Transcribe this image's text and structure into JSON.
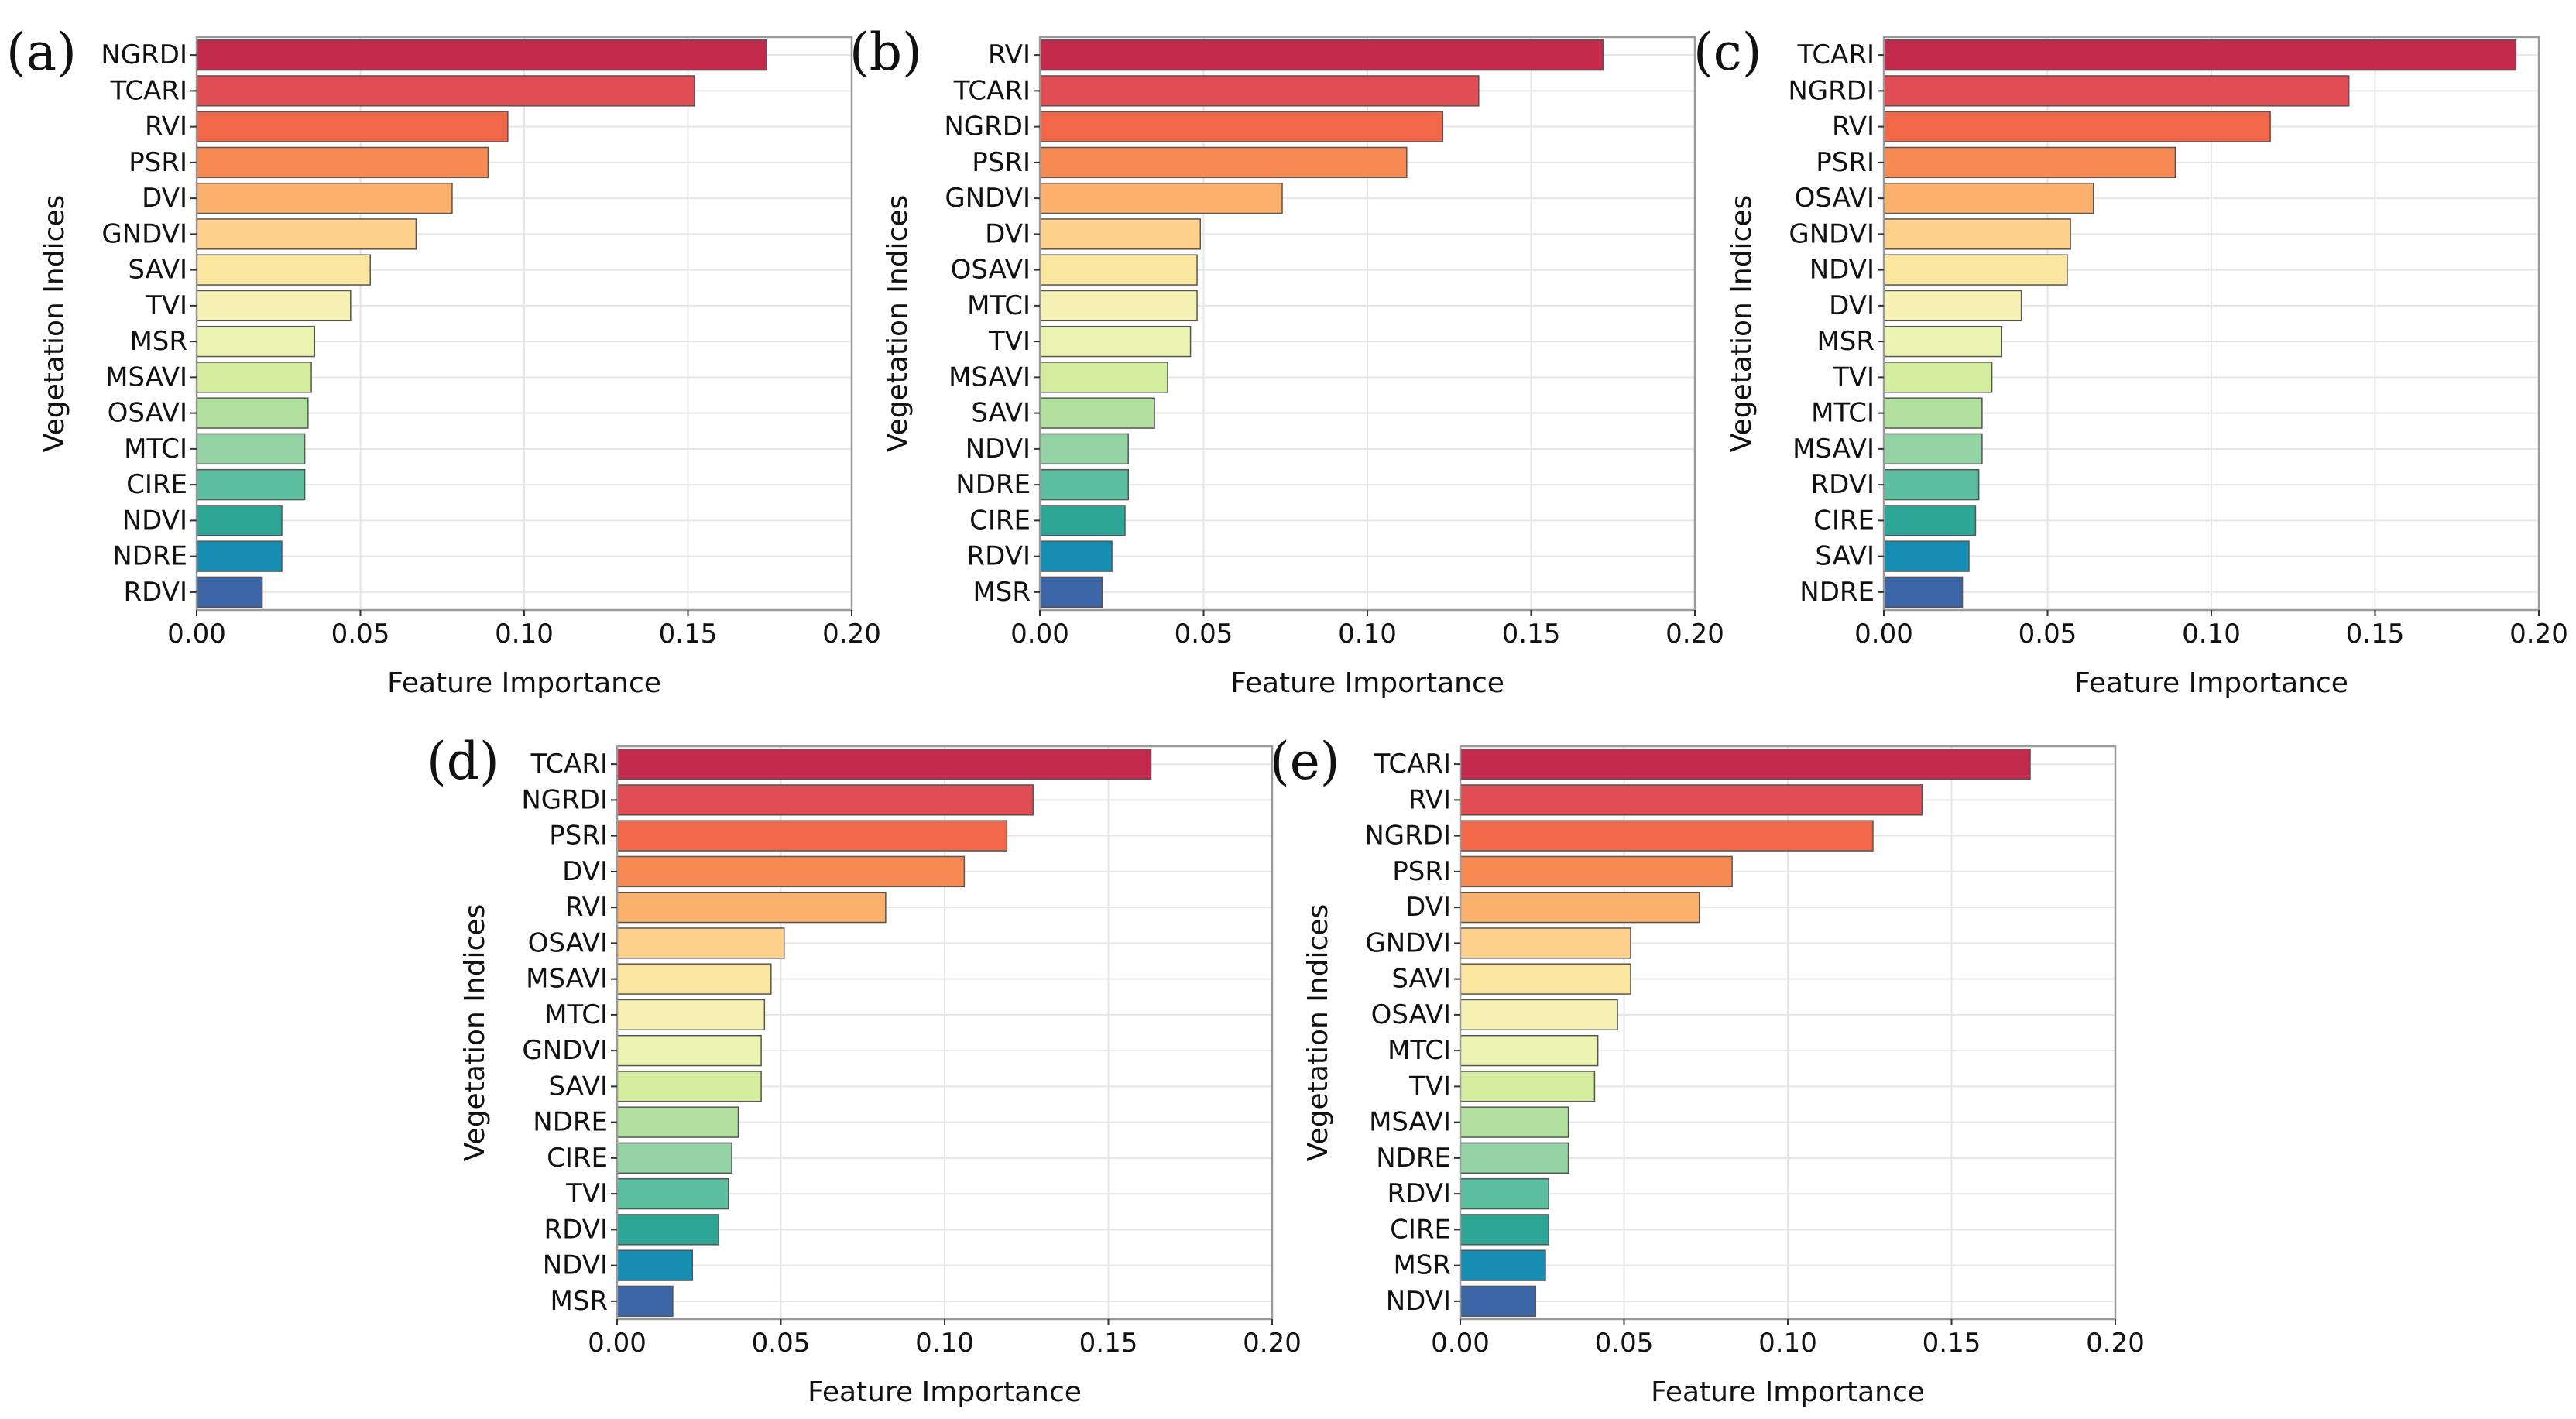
{
  "chart_data": [
    {
      "panel": "(a)",
      "type": "bar",
      "orientation": "horizontal",
      "xlabel": "Feature Importance",
      "ylabel": "Vegetation Indices",
      "xlim": [
        0,
        0.2
      ],
      "xticks": [
        "0.00",
        "0.05",
        "0.10",
        "0.15",
        "0.20"
      ],
      "grid": true,
      "categories": [
        "NGRDI",
        "TCARI",
        "RVI",
        "PSRI",
        "DVI",
        "GNDVI",
        "SAVI",
        "TVI",
        "MSR",
        "MSAVI",
        "OSAVI",
        "MTCI",
        "CIRE",
        "NDVI",
        "NDRE",
        "RDVI"
      ],
      "values": [
        0.174,
        0.152,
        0.095,
        0.089,
        0.078,
        0.067,
        0.053,
        0.047,
        0.036,
        0.035,
        0.034,
        0.033,
        0.033,
        0.026,
        0.026,
        0.02
      ]
    },
    {
      "panel": "(b)",
      "type": "bar",
      "orientation": "horizontal",
      "xlabel": "Feature Importance",
      "ylabel": "Vegetation Indices",
      "xlim": [
        0,
        0.2
      ],
      "xticks": [
        "0.00",
        "0.05",
        "0.10",
        "0.15",
        "0.20"
      ],
      "grid": true,
      "categories": [
        "RVI",
        "TCARI",
        "NGRDI",
        "PSRI",
        "GNDVI",
        "DVI",
        "OSAVI",
        "MTCI",
        "TVI",
        "MSAVI",
        "SAVI",
        "NDVI",
        "NDRE",
        "CIRE",
        "RDVI",
        "MSR"
      ],
      "values": [
        0.172,
        0.134,
        0.123,
        0.112,
        0.074,
        0.049,
        0.048,
        0.048,
        0.046,
        0.039,
        0.035,
        0.027,
        0.027,
        0.026,
        0.022,
        0.019
      ]
    },
    {
      "panel": "(c)",
      "type": "bar",
      "orientation": "horizontal",
      "xlabel": "Feature Importance",
      "ylabel": "Vegetation Indices",
      "xlim": [
        0,
        0.2
      ],
      "xticks": [
        "0.00",
        "0.05",
        "0.10",
        "0.15",
        "0.20"
      ],
      "grid": true,
      "categories": [
        "TCARI",
        "NGRDI",
        "RVI",
        "PSRI",
        "OSAVI",
        "GNDVI",
        "NDVI",
        "DVI",
        "MSR",
        "TVI",
        "MTCI",
        "MSAVI",
        "RDVI",
        "CIRE",
        "SAVI",
        "NDRE"
      ],
      "values": [
        0.193,
        0.142,
        0.118,
        0.089,
        0.064,
        0.057,
        0.056,
        0.042,
        0.036,
        0.033,
        0.03,
        0.03,
        0.029,
        0.028,
        0.026,
        0.024
      ]
    },
    {
      "panel": "(d)",
      "type": "bar",
      "orientation": "horizontal",
      "xlabel": "Feature Importance",
      "ylabel": "Vegetation Indices",
      "xlim": [
        0,
        0.2
      ],
      "xticks": [
        "0.00",
        "0.05",
        "0.10",
        "0.15",
        "0.20"
      ],
      "grid": true,
      "categories": [
        "TCARI",
        "NGRDI",
        "PSRI",
        "DVI",
        "RVI",
        "OSAVI",
        "MSAVI",
        "MTCI",
        "GNDVI",
        "SAVI",
        "NDRE",
        "CIRE",
        "TVI",
        "RDVI",
        "NDVI",
        "MSR"
      ],
      "values": [
        0.163,
        0.127,
        0.119,
        0.106,
        0.082,
        0.051,
        0.047,
        0.045,
        0.044,
        0.044,
        0.037,
        0.035,
        0.034,
        0.031,
        0.023,
        0.017
      ]
    },
    {
      "panel": "(e)",
      "type": "bar",
      "orientation": "horizontal",
      "xlabel": "Feature Importance",
      "ylabel": "Vegetation Indices",
      "xlim": [
        0,
        0.2
      ],
      "xticks": [
        "0.00",
        "0.05",
        "0.10",
        "0.15",
        "0.20"
      ],
      "grid": true,
      "categories": [
        "TCARI",
        "RVI",
        "NGRDI",
        "PSRI",
        "DVI",
        "GNDVI",
        "SAVI",
        "OSAVI",
        "MTCI",
        "TVI",
        "MSAVI",
        "NDRE",
        "RDVI",
        "CIRE",
        "MSR",
        "NDVI"
      ],
      "values": [
        0.174,
        0.141,
        0.126,
        0.083,
        0.073,
        0.052,
        0.052,
        0.048,
        0.042,
        0.041,
        0.033,
        0.033,
        0.027,
        0.027,
        0.026,
        0.023
      ]
    }
  ],
  "palette": [
    "#c42a4c",
    "#e04d55",
    "#f06848",
    "#f78a52",
    "#fbb06b",
    "#fdd08c",
    "#fbe6a0",
    "#f5f2b4",
    "#eaf3b0",
    "#d3ec9d",
    "#b2e09f",
    "#94d3a4",
    "#5cbf9f",
    "#2ea697",
    "#168db2",
    "#3c66a8"
  ]
}
